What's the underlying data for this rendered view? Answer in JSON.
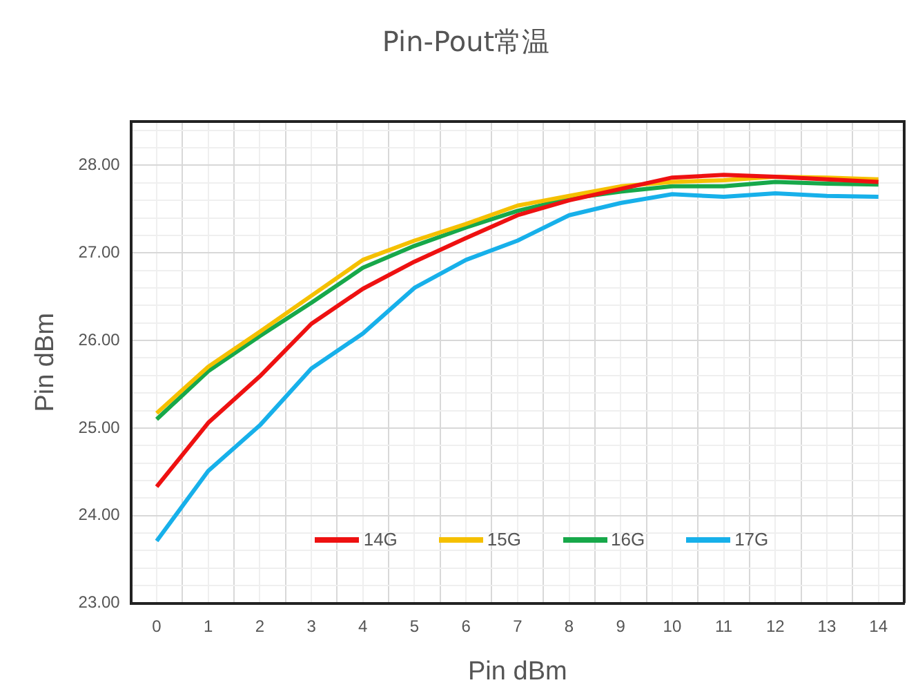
{
  "chart_data": {
    "type": "line",
    "title": "Pin-Pout常温",
    "xlabel": "Pin dBm",
    "ylabel": "Pin dBm",
    "x": [
      0,
      1,
      2,
      3,
      4,
      5,
      6,
      7,
      8,
      9,
      10,
      11,
      12,
      13,
      14
    ],
    "xlim": [
      -0.5,
      14.5
    ],
    "xticks": [
      {
        "value": -0.5,
        "label": null
      },
      0,
      {
        "value": 0.5,
        "label": null
      },
      1,
      {
        "value": 1.5,
        "label": null
      },
      2,
      {
        "value": 2.5,
        "label": null
      },
      3,
      {
        "value": 3.5,
        "label": null
      },
      4,
      {
        "value": 4.5,
        "label": null
      },
      5,
      {
        "value": 5.5,
        "label": null
      },
      6,
      {
        "value": 6.5,
        "label": null
      },
      7,
      {
        "value": 7.5,
        "label": null
      },
      8,
      {
        "value": 8.5,
        "label": null
      },
      9,
      {
        "value": 9.5,
        "label": null
      },
      10,
      {
        "value": 10.5,
        "label": null
      },
      11,
      {
        "value": 11.5,
        "label": null
      },
      12,
      {
        "value": 12.5,
        "label": null
      },
      13,
      {
        "value": 13.5,
        "label": null
      },
      14,
      {
        "value": 14.5,
        "label": null
      }
    ],
    "series": [
      {
        "name": "14G",
        "color": "#ee1111",
        "values": [
          24.33,
          25.06,
          25.59,
          26.19,
          26.59,
          26.9,
          27.17,
          27.43,
          27.6,
          27.73,
          27.86,
          27.89,
          27.87,
          27.84,
          27.81
        ]
      },
      {
        "name": "15G",
        "color": "#f5c000",
        "values": [
          25.17,
          25.7,
          26.1,
          26.51,
          26.92,
          27.14,
          27.33,
          27.54,
          27.65,
          27.76,
          27.81,
          27.83,
          27.87,
          27.86,
          27.84
        ]
      },
      {
        "name": "16G",
        "color": "#17a84a",
        "values": [
          25.1,
          25.65,
          26.05,
          26.43,
          26.83,
          27.08,
          27.29,
          27.48,
          27.62,
          27.7,
          27.76,
          27.76,
          27.81,
          27.79,
          27.78
        ]
      },
      {
        "name": "17G",
        "color": "#17b0ea",
        "values": [
          23.71,
          24.51,
          25.03,
          25.68,
          26.08,
          26.6,
          26.92,
          27.14,
          27.43,
          27.57,
          27.67,
          27.64,
          27.68,
          27.65,
          27.64
        ]
      }
    ],
    "ylim": [
      23,
      28.5
    ],
    "yticks": [
      {
        "value": 23,
        "label": "23.00"
      },
      {
        "value": 23.2,
        "label": null
      },
      {
        "value": 23.4,
        "label": null
      },
      {
        "value": 23.6,
        "label": null
      },
      {
        "value": 23.8,
        "label": null
      },
      {
        "value": 24,
        "label": "24.00"
      },
      {
        "value": 24.2,
        "label": null
      },
      {
        "value": 24.4,
        "label": null
      },
      {
        "value": 24.6,
        "label": null
      },
      {
        "value": 24.8,
        "label": null
      },
      {
        "value": 25,
        "label": "25.00"
      },
      {
        "value": 25.2,
        "label": null
      },
      {
        "value": 25.4,
        "label": null
      },
      {
        "value": 25.6,
        "label": null
      },
      {
        "value": 25.8,
        "label": null
      },
      {
        "value": 26,
        "label": "26.00"
      },
      {
        "value": 26.2,
        "label": null
      },
      {
        "value": 26.4,
        "label": null
      },
      {
        "value": 26.6,
        "label": null
      },
      {
        "value": 26.8,
        "label": null
      },
      {
        "value": 27,
        "label": "27.00"
      },
      {
        "value": 27.2,
        "label": null
      },
      {
        "value": 27.4,
        "label": null
      },
      {
        "value": 27.6,
        "label": null
      },
      {
        "value": 27.8,
        "label": null
      },
      {
        "value": 28,
        "label": "28.00"
      },
      {
        "value": 28.2,
        "label": null
      },
      {
        "value": 28.4,
        "label": null
      }
    ],
    "grid": true,
    "legend": "bottom",
    "marker": "none",
    "line_style": "solid"
  }
}
